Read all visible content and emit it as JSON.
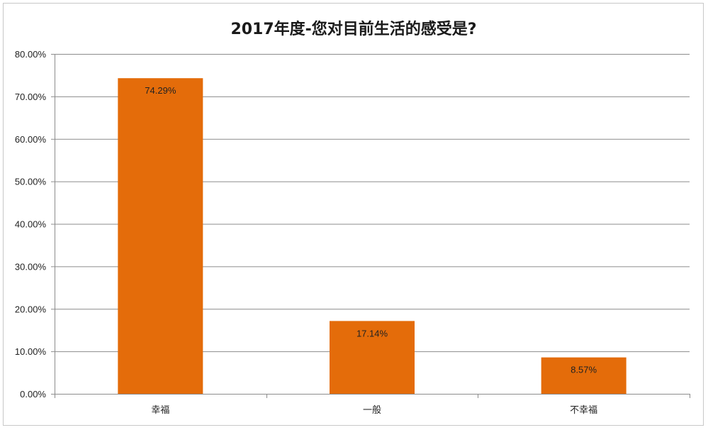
{
  "chart_data": {
    "type": "bar",
    "title": "2017年度-您对目前生活的感受是?",
    "categories": [
      "幸福",
      "一般",
      "不幸福"
    ],
    "values": [
      74.29,
      17.14,
      8.57
    ],
    "data_labels": [
      "74.29%",
      "17.14%",
      "8.57%"
    ],
    "ylim": [
      0,
      80
    ],
    "yticks": [
      0,
      10,
      20,
      30,
      40,
      50,
      60,
      70,
      80
    ],
    "ytick_labels": [
      "0.00%",
      "10.00%",
      "20.00%",
      "30.00%",
      "40.00%",
      "50.00%",
      "60.00%",
      "70.00%",
      "80.00%"
    ],
    "grid": true,
    "legend": "none",
    "bar_color": "#E46C0A"
  }
}
